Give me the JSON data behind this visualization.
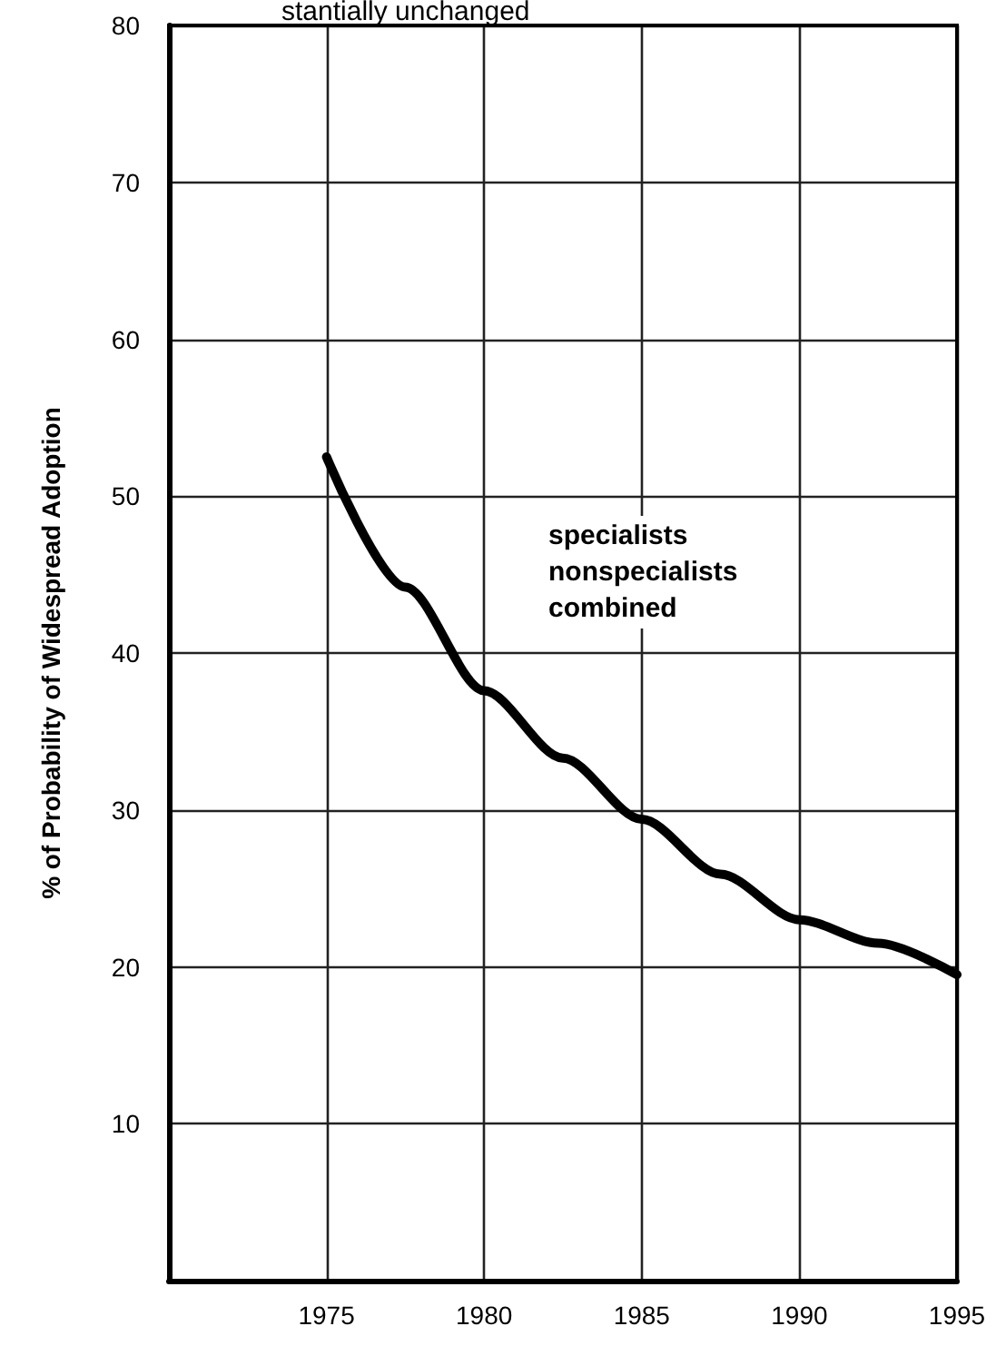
{
  "chart_data": {
    "type": "line",
    "title": "stantially unchanged",
    "ylabel": "% of Probability of Widespread Adoption",
    "x": [
      1975,
      1977.5,
      1980,
      1982.5,
      1985,
      1987.5,
      1990,
      1992.5,
      1995
    ],
    "series": [
      {
        "color": "#000000",
        "values": [
          52.5,
          44.2,
          37.6,
          33.3,
          29.4,
          25.9,
          23,
          21.5,
          19.5
        ]
      }
    ],
    "xlim": [
      1970,
      1995
    ],
    "xticks": [
      1975,
      1980,
      1985,
      1990,
      1995
    ],
    "ylim": [
      0,
      80
    ],
    "yticks": [
      10,
      20,
      30,
      40,
      50,
      60,
      70,
      80
    ],
    "annotations": [
      "specialists\nnonspecialists\ncombined"
    ],
    "grid": true,
    "marker": "none",
    "line_style": "solid"
  }
}
